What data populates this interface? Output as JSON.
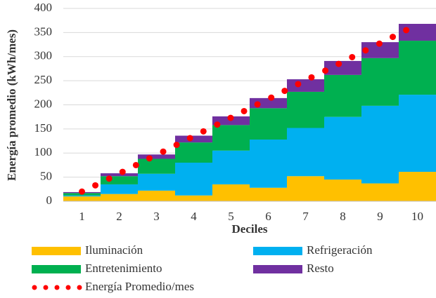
{
  "chart_data": {
    "type": "stacked_step_area",
    "x_label": "Deciles",
    "y_label": "Energía promedio (kWh/mes)",
    "categories": [
      1,
      2,
      3,
      4,
      5,
      6,
      7,
      8,
      9,
      10
    ],
    "xlim": [
      0.5,
      10.5
    ],
    "ylim": [
      0,
      400
    ],
    "yticks": [
      0,
      50,
      100,
      150,
      200,
      250,
      300,
      350,
      400
    ],
    "grid": true,
    "legend": "bottom",
    "series": [
      {
        "name": "Iluminación",
        "color": "#FFC000",
        "values": [
          10,
          15,
          22,
          12,
          35,
          28,
          52,
          45,
          37,
          61
        ]
      },
      {
        "name": "Refrigeración",
        "color": "#00B0F0",
        "values": [
          2,
          20,
          35,
          68,
          70,
          100,
          100,
          130,
          161,
          160
        ]
      },
      {
        "name": "Entretenimiento",
        "color": "#00B050",
        "values": [
          5,
          17,
          31,
          42,
          53,
          65,
          75,
          87,
          99,
          112
        ]
      },
      {
        "name": "Resto",
        "color": "#7030A0",
        "values": [
          2,
          6,
          9,
          14,
          18,
          21,
          26,
          29,
          33,
          35
        ]
      }
    ],
    "dots": {
      "name": "Energía Promedio/mes",
      "color": "#FF0000",
      "x": [
        1.0,
        1.36,
        1.73,
        2.09,
        2.45,
        2.81,
        3.18,
        3.54,
        3.9,
        4.26,
        4.63,
        4.99,
        5.35,
        5.71,
        6.08,
        6.44,
        6.8,
        7.16,
        7.53,
        7.89,
        8.25,
        8.61,
        8.98,
        9.34,
        9.7
      ],
      "values": [
        20,
        33,
        47,
        61,
        75,
        89,
        103,
        117,
        131,
        145,
        159,
        173,
        187,
        201,
        215,
        229,
        243,
        257,
        271,
        285,
        299,
        313,
        327,
        341,
        355
      ]
    }
  }
}
